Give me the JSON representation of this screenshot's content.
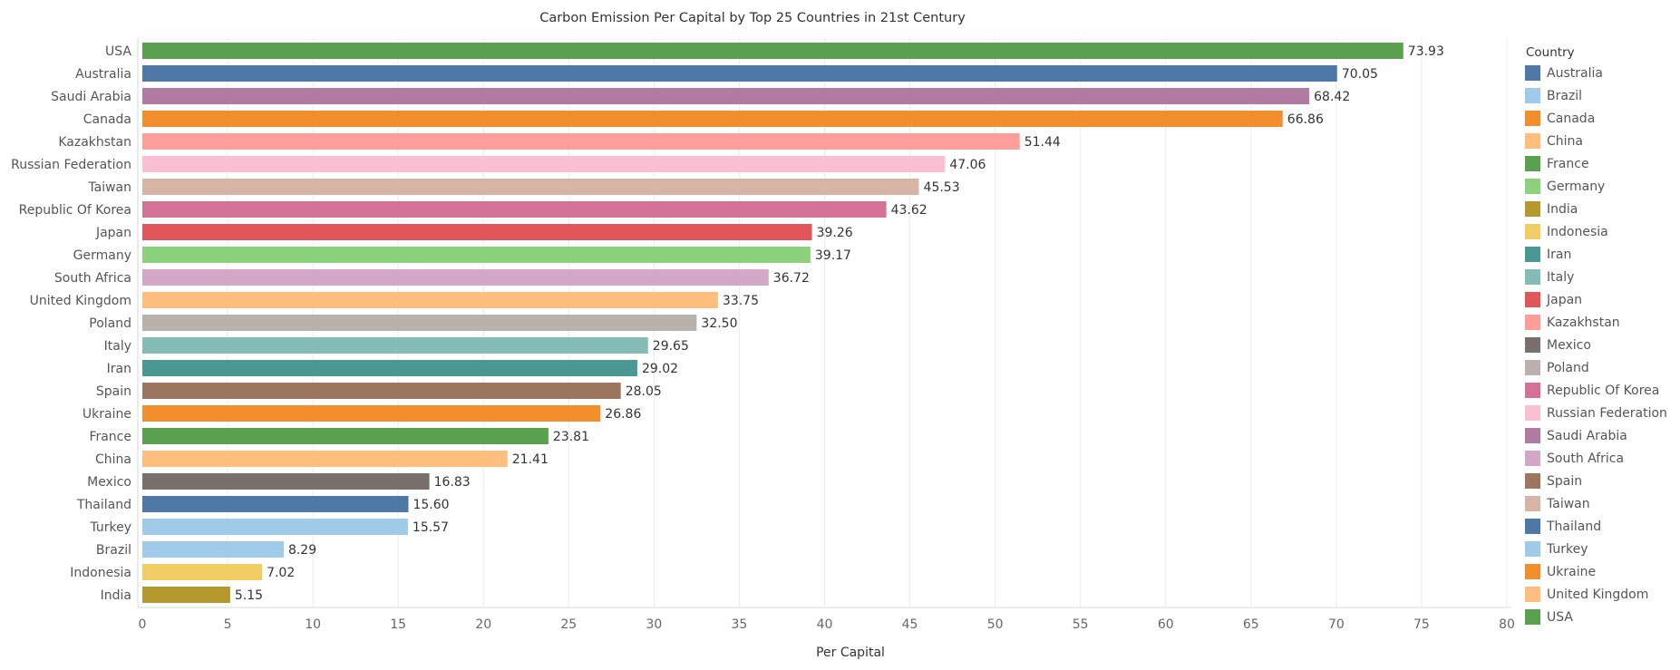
{
  "chart_data": {
    "type": "bar",
    "orientation": "horizontal",
    "title": "Carbon Emission Per Capital by Top 25 Countries in 21st Century",
    "xlabel": "Per Capital",
    "ylabel": "",
    "xlim": [
      0,
      80
    ],
    "xticks": [
      0,
      5,
      10,
      15,
      20,
      25,
      30,
      35,
      40,
      45,
      50,
      55,
      60,
      65,
      70,
      75,
      80
    ],
    "grid": "vertical",
    "legend_title": "Country",
    "legend_position": "right",
    "categories": [
      "USA",
      "Australia",
      "Saudi Arabia",
      "Canada",
      "Kazakhstan",
      "Russian Federation",
      "Taiwan",
      "Republic Of Korea",
      "Japan",
      "Germany",
      "South Africa",
      "United Kingdom",
      "Poland",
      "Italy",
      "Iran",
      "Spain",
      "Ukraine",
      "France",
      "China",
      "Mexico",
      "Thailand",
      "Turkey",
      "Brazil",
      "Indonesia",
      "India"
    ],
    "values": [
      73.93,
      70.05,
      68.42,
      66.86,
      51.44,
      47.06,
      45.53,
      43.62,
      39.26,
      39.17,
      36.72,
      33.75,
      32.5,
      29.65,
      29.02,
      28.05,
      26.86,
      23.81,
      21.41,
      16.83,
      15.6,
      15.57,
      8.29,
      7.02,
      5.15
    ],
    "value_labels": [
      "73.93",
      "70.05",
      "68.42",
      "66.86",
      "51.44",
      "47.06",
      "45.53",
      "43.62",
      "39.26",
      "39.17",
      "36.72",
      "33.75",
      "32.50",
      "29.65",
      "29.02",
      "28.05",
      "26.86",
      "23.81",
      "21.41",
      "16.83",
      "15.60",
      "15.57",
      "8.29",
      "7.02",
      "5.15"
    ],
    "colors": {
      "Australia": "#4e79a7",
      "Brazil": "#a0cbe8",
      "Canada": "#f28e2b",
      "China": "#ffbe7d",
      "France": "#59a14f",
      "Germany": "#8cd17d",
      "India": "#b6992d",
      "Indonesia": "#f1ce63",
      "Iran": "#499894",
      "Italy": "#86bcb6",
      "Japan": "#e15759",
      "Kazakhstan": "#ff9d9a",
      "Mexico": "#79706e",
      "Poland": "#bab0ac",
      "Republic Of Korea": "#d37295",
      "Russian Federation": "#fabfd2",
      "Saudi Arabia": "#b07aa1",
      "South Africa": "#d4a6c8",
      "Spain": "#9d7660",
      "Taiwan": "#d7b5a6",
      "Thailand": "#4e79a7",
      "Turkey": "#a0cbe8",
      "Ukraine": "#f28e2b",
      "United Kingdom": "#ffbe7d",
      "USA": "#59a14f"
    },
    "legend_items": [
      "Australia",
      "Brazil",
      "Canada",
      "China",
      "France",
      "Germany",
      "India",
      "Indonesia",
      "Iran",
      "Italy",
      "Japan",
      "Kazakhstan",
      "Mexico",
      "Poland",
      "Republic Of Korea",
      "Russian Federation",
      "Saudi Arabia",
      "South Africa",
      "Spain",
      "Taiwan",
      "Thailand",
      "Turkey",
      "Ukraine",
      "United Kingdom",
      "USA"
    ]
  }
}
